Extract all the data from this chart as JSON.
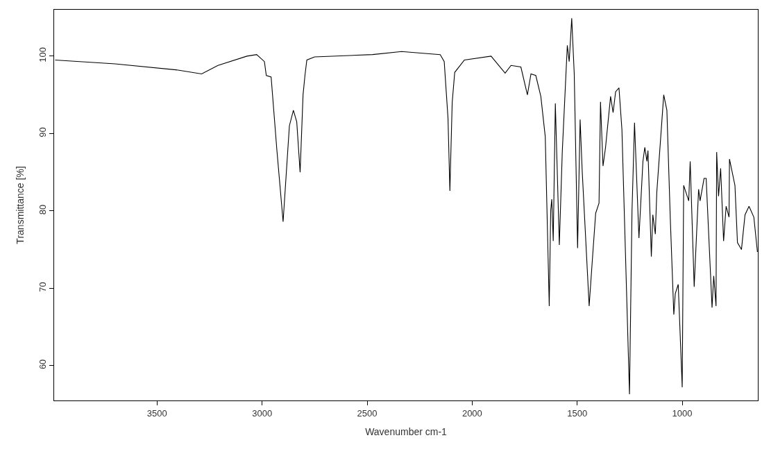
{
  "chart_data": {
    "type": "line",
    "xlabel": "Wavenumber cm-1",
    "ylabel": "Transmittance [%]",
    "xlim": [
      3990,
      640
    ],
    "ylim": [
      55.5,
      106
    ],
    "xticks": [
      3500,
      3000,
      2500,
      2000,
      1500,
      1000
    ],
    "yticks": [
      60,
      70,
      80,
      90,
      100
    ],
    "grid": false,
    "legend": false,
    "marker": "none",
    "line_style": "solid",
    "x": [
      3985,
      3700,
      3400,
      3288,
      3210,
      3072,
      3026,
      2989,
      2980,
      2957,
      2930,
      2900,
      2870,
      2851,
      2835,
      2819,
      2805,
      2796,
      2787,
      2750,
      2474,
      2336,
      2152,
      2133,
      2115,
      2106,
      2095,
      2083,
      2037,
      1910,
      1843,
      1815,
      1768,
      1737,
      1720,
      1697,
      1673,
      1652,
      1633,
      1626,
      1621,
      1614,
      1604,
      1585,
      1571,
      1547,
      1538,
      1526,
      1514,
      1498,
      1486,
      1476,
      1443,
      1429,
      1412,
      1396,
      1389,
      1377,
      1365,
      1341,
      1329,
      1317,
      1301,
      1287,
      1251,
      1239,
      1227,
      1206,
      1187,
      1178,
      1168,
      1163,
      1147,
      1140,
      1128,
      1121,
      1088,
      1073,
      1057,
      1040,
      1033,
      1019,
      1000,
      993,
      969,
      962,
      943,
      922,
      915,
      896,
      886,
      858,
      850,
      839,
      836,
      827,
      817,
      803,
      791,
      777,
      775,
      749,
      737,
      718,
      701,
      682,
      659,
      642
    ],
    "values": [
      99.5,
      99.0,
      98.2,
      97.7,
      98.8,
      100.0,
      100.2,
      99.3,
      97.5,
      97.3,
      88.0,
      78.6,
      91.0,
      93.0,
      91.5,
      85.0,
      95.0,
      97.5,
      99.5,
      99.9,
      100.2,
      100.6,
      100.2,
      99.3,
      92.0,
      82.6,
      94.0,
      97.9,
      99.5,
      100.0,
      97.8,
      98.8,
      98.6,
      95.0,
      97.7,
      97.5,
      94.8,
      89.6,
      67.7,
      80.1,
      81.5,
      76.1,
      93.9,
      75.6,
      87.6,
      101.4,
      99.3,
      104.9,
      97.7,
      75.2,
      91.8,
      85.1,
      67.7,
      73.2,
      79.7,
      81.0,
      94.1,
      85.8,
      88.2,
      94.8,
      92.7,
      95.4,
      95.9,
      90.5,
      56.3,
      80.0,
      91.4,
      76.5,
      86.4,
      88.2,
      86.4,
      87.8,
      74.1,
      79.5,
      77.0,
      82.4,
      95.0,
      93.0,
      79.2,
      66.6,
      69.3,
      70.5,
      57.2,
      83.3,
      81.3,
      86.4,
      70.2,
      82.8,
      81.3,
      84.2,
      84.2,
      67.5,
      71.6,
      67.7,
      87.6,
      81.9,
      85.5,
      76.1,
      80.6,
      79.2,
      86.7,
      83.3,
      75.9,
      75.0,
      79.5,
      80.6,
      79.2,
      74.7
    ],
    "color": "#000000"
  }
}
